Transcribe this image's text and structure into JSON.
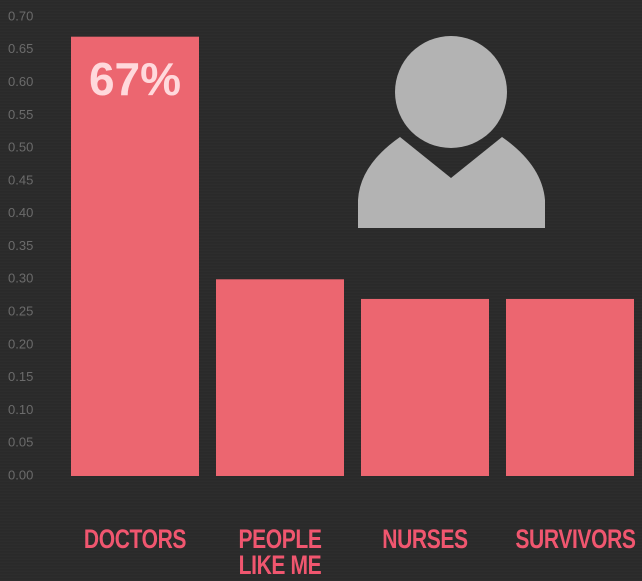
{
  "chart_data": {
    "type": "bar",
    "categories": [
      "DOCTORS",
      "PEOPLE LIKE ME",
      "NURSES",
      "SURVIVORS"
    ],
    "values": [
      0.67,
      0.3,
      0.27,
      0.27
    ],
    "value_labels": [
      "67%",
      null,
      null,
      null
    ],
    "color": "#ec6670",
    "ylim": [
      0,
      0.7
    ],
    "yticks": [
      {
        "value": 0,
        "label": "0.00"
      },
      {
        "value": 0.05,
        "label": "0.05"
      },
      {
        "value": 0.1,
        "label": "0.10"
      },
      {
        "value": 0.15,
        "label": "0.15"
      },
      {
        "value": 0.2,
        "label": "0.20"
      },
      {
        "value": 0.25,
        "label": "0.25"
      },
      {
        "value": 0.3,
        "label": "0.30"
      },
      {
        "value": 0.35,
        "label": "0.35"
      },
      {
        "value": 0.4,
        "label": "0.40"
      },
      {
        "value": 0.45,
        "label": "0.45"
      },
      {
        "value": 0.5,
        "label": "0.50"
      },
      {
        "value": 0.55,
        "label": "0.55"
      },
      {
        "value": 0.6,
        "label": "0.60"
      },
      {
        "value": 0.65,
        "label": "0.65"
      },
      {
        "value": 0.7,
        "label": "0.70"
      }
    ]
  }
}
